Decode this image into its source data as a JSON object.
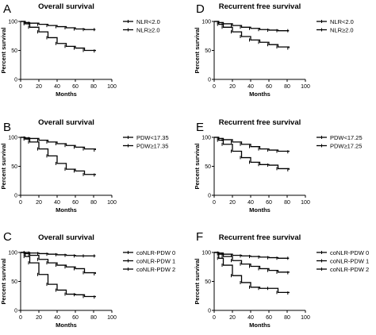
{
  "chart_data": [
    {
      "panel": "A",
      "type": "line",
      "title": "Overall survival",
      "xlabel": "Months",
      "ylabel": "Percent survival",
      "xlim": [
        0,
        100
      ],
      "ylim": [
        0,
        100
      ],
      "xticks": [
        0,
        20,
        40,
        60,
        80,
        100
      ],
      "yticks": [
        0,
        50,
        100
      ],
      "series": [
        {
          "name": "NLR<2.0",
          "x": [
            0,
            5,
            10,
            20,
            30,
            40,
            50,
            60,
            70,
            82
          ],
          "y": [
            100,
            98,
            97,
            95,
            93,
            91,
            89,
            87,
            86,
            86
          ]
        },
        {
          "name": "NLR≥2.0",
          "x": [
            0,
            5,
            10,
            20,
            30,
            40,
            50,
            60,
            70,
            82
          ],
          "y": [
            100,
            96,
            90,
            82,
            72,
            62,
            57,
            54,
            50,
            49
          ]
        }
      ]
    },
    {
      "panel": "D",
      "type": "line",
      "title": "Recurrent free survival",
      "xlabel": "Months",
      "ylabel": "Percent survival",
      "xlim": [
        0,
        100
      ],
      "ylim": [
        0,
        100
      ],
      "xticks": [
        0,
        20,
        40,
        60,
        80,
        100
      ],
      "yticks": [
        0,
        50,
        100
      ],
      "series": [
        {
          "name": "NLR<2.0",
          "x": [
            0,
            5,
            10,
            20,
            30,
            40,
            50,
            60,
            70,
            82
          ],
          "y": [
            100,
            98,
            96,
            93,
            90,
            88,
            86,
            85,
            84,
            84
          ]
        },
        {
          "name": "NLR≥2.0",
          "x": [
            0,
            5,
            10,
            20,
            30,
            40,
            50,
            60,
            70,
            82
          ],
          "y": [
            100,
            95,
            90,
            82,
            74,
            68,
            64,
            60,
            56,
            54
          ]
        }
      ]
    },
    {
      "panel": "B",
      "type": "line",
      "title": "Overall survival",
      "xlabel": "Months",
      "ylabel": "Percent survival",
      "xlim": [
        0,
        100
      ],
      "ylim": [
        0,
        100
      ],
      "xticks": [
        0,
        20,
        40,
        60,
        80,
        100
      ],
      "yticks": [
        0,
        50,
        100
      ],
      "series": [
        {
          "name": "PDW<17.35",
          "x": [
            0,
            5,
            10,
            20,
            30,
            40,
            50,
            60,
            70,
            82
          ],
          "y": [
            100,
            99,
            98,
            95,
            92,
            89,
            86,
            83,
            80,
            78
          ]
        },
        {
          "name": "PDW≥17.35",
          "x": [
            0,
            5,
            10,
            20,
            30,
            40,
            50,
            60,
            70,
            82
          ],
          "y": [
            100,
            97,
            92,
            80,
            68,
            55,
            45,
            42,
            36,
            35
          ]
        }
      ]
    },
    {
      "panel": "E",
      "type": "line",
      "title": "Recurrent free survival",
      "xlabel": "Months",
      "ylabel": "Percent survival",
      "xlim": [
        0,
        100
      ],
      "ylim": [
        0,
        100
      ],
      "xticks": [
        0,
        20,
        40,
        60,
        80,
        100
      ],
      "yticks": [
        0,
        50,
        100
      ],
      "series": [
        {
          "name": "PDW<17.25",
          "x": [
            0,
            5,
            10,
            20,
            30,
            40,
            50,
            60,
            70,
            82
          ],
          "y": [
            100,
            98,
            96,
            92,
            88,
            84,
            80,
            78,
            76,
            75
          ]
        },
        {
          "name": "PDW≥17.25",
          "x": [
            0,
            5,
            10,
            20,
            30,
            40,
            50,
            60,
            70,
            82
          ],
          "y": [
            100,
            95,
            88,
            76,
            65,
            57,
            53,
            52,
            46,
            44
          ]
        }
      ]
    },
    {
      "panel": "C",
      "type": "line",
      "title": "Overall survival",
      "xlabel": "Months",
      "ylabel": "Percent survival",
      "xlim": [
        0,
        100
      ],
      "ylim": [
        0,
        100
      ],
      "xticks": [
        0,
        20,
        40,
        60,
        80,
        100
      ],
      "yticks": [
        0,
        50,
        100
      ],
      "series": [
        {
          "name": "coNLR-PDW 0",
          "x": [
            0,
            5,
            10,
            20,
            30,
            40,
            50,
            60,
            70,
            82
          ],
          "y": [
            100,
            100,
            99,
            98,
            97,
            96,
            95,
            94,
            94,
            94
          ]
        },
        {
          "name": "coNLR-PDW 1",
          "x": [
            0,
            5,
            10,
            20,
            30,
            40,
            50,
            60,
            70,
            82
          ],
          "y": [
            100,
            98,
            95,
            88,
            82,
            78,
            75,
            72,
            65,
            63
          ]
        },
        {
          "name": "coNLR-PDW 2",
          "x": [
            0,
            5,
            10,
            20,
            30,
            40,
            50,
            60,
            70,
            82
          ],
          "y": [
            100,
            93,
            82,
            62,
            45,
            35,
            28,
            27,
            24,
            23
          ]
        }
      ]
    },
    {
      "panel": "F",
      "type": "line",
      "title": "Recurrent free survival",
      "xlabel": "Months",
      "ylabel": "Percent survival",
      "xlim": [
        0,
        100
      ],
      "ylim": [
        0,
        100
      ],
      "xticks": [
        0,
        20,
        40,
        60,
        80,
        100
      ],
      "yticks": [
        0,
        50,
        100
      ],
      "series": [
        {
          "name": "coNLR-PDW 0",
          "x": [
            0,
            5,
            10,
            20,
            30,
            40,
            50,
            60,
            70,
            82
          ],
          "y": [
            100,
            99,
            97,
            95,
            94,
            93,
            92,
            91,
            90,
            90
          ]
        },
        {
          "name": "coNLR-PDW 1",
          "x": [
            0,
            5,
            10,
            20,
            30,
            40,
            50,
            60,
            70,
            82
          ],
          "y": [
            100,
            97,
            93,
            86,
            80,
            76,
            72,
            69,
            66,
            65
          ]
        },
        {
          "name": "coNLR-PDW 2",
          "x": [
            0,
            5,
            10,
            20,
            30,
            40,
            50,
            60,
            70,
            82
          ],
          "y": [
            100,
            90,
            78,
            60,
            48,
            40,
            38,
            38,
            31,
            30
          ]
        }
      ]
    }
  ]
}
